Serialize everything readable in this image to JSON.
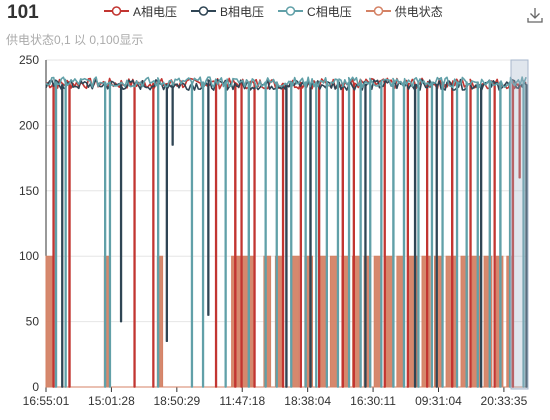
{
  "title": "101",
  "subtitle": "供电状态0,1 以 0,100显示",
  "toolbox": {
    "icon": "download-icon"
  },
  "chart_data": {
    "type": "line",
    "title": "101",
    "subtitle": "供电状态0,1 以 0,100显示",
    "ylim": [
      0,
      250
    ],
    "y_ticks": [
      0,
      50,
      100,
      150,
      200,
      250
    ],
    "x_tick_labels": [
      "16:55:01",
      "15:01:28",
      "18:50:29",
      "11:47:18",
      "18:38:04",
      "16:30:11",
      "09:31:04",
      "20:33:35"
    ],
    "grid": true,
    "legend_position": "top",
    "series": [
      {
        "name": "A相电压",
        "color": "#c23531",
        "baseline": 232,
        "drops": [
          [
            0.015,
            0
          ],
          [
            0.048,
            0
          ],
          [
            0.183,
            0
          ],
          [
            0.222,
            0
          ],
          [
            0.352,
            0
          ],
          [
            0.392,
            0
          ],
          [
            0.405,
            0
          ],
          [
            0.432,
            0
          ],
          [
            0.491,
            0
          ],
          [
            0.528,
            0
          ],
          [
            0.566,
            0
          ],
          [
            0.615,
            0
          ],
          [
            0.638,
            0
          ],
          [
            0.702,
            0
          ],
          [
            0.75,
            0
          ],
          [
            0.79,
            0
          ],
          [
            0.842,
            0
          ],
          [
            0.88,
            0
          ],
          [
            0.93,
            0
          ],
          [
            0.968,
            0
          ],
          [
            0.982,
            160
          ]
        ]
      },
      {
        "name": "B相电压",
        "color": "#2f4554",
        "baseline": 231,
        "drops": [
          [
            0.033,
            0
          ],
          [
            0.155,
            50
          ],
          [
            0.25,
            35
          ],
          [
            0.262,
            185
          ],
          [
            0.336,
            55
          ],
          [
            0.498,
            0
          ],
          [
            0.548,
            0
          ],
          [
            0.662,
            0
          ],
          [
            0.765,
            0
          ],
          [
            0.81,
            0
          ],
          [
            0.902,
            0
          ],
          [
            0.996,
            0
          ]
        ]
      },
      {
        "name": "C相电压",
        "color": "#61a0a8",
        "baseline": 233,
        "drops": [
          [
            0.02,
            0
          ],
          [
            0.04,
            0
          ],
          [
            0.122,
            0
          ],
          [
            0.132,
            0
          ],
          [
            0.232,
            0
          ],
          [
            0.302,
            0
          ],
          [
            0.325,
            0
          ],
          [
            0.372,
            0
          ],
          [
            0.42,
            0
          ],
          [
            0.455,
            0
          ],
          [
            0.478,
            0
          ],
          [
            0.508,
            0
          ],
          [
            0.538,
            0
          ],
          [
            0.56,
            0
          ],
          [
            0.582,
            0
          ],
          [
            0.605,
            0
          ],
          [
            0.628,
            0
          ],
          [
            0.652,
            0
          ],
          [
            0.672,
            0
          ],
          [
            0.695,
            0
          ],
          [
            0.72,
            0
          ],
          [
            0.742,
            0
          ],
          [
            0.772,
            0
          ],
          [
            0.8,
            0
          ],
          [
            0.822,
            0
          ],
          [
            0.852,
            0
          ],
          [
            0.872,
            0
          ],
          [
            0.895,
            0
          ],
          [
            0.92,
            0
          ],
          [
            0.942,
            0
          ],
          [
            0.962,
            0
          ],
          [
            0.99,
            0
          ]
        ]
      },
      {
        "name": "供电状态",
        "color": "#d48265",
        "on_value": 100,
        "on_intervals": [
          [
            0.0,
            0.014
          ],
          [
            0.121,
            0.133
          ],
          [
            0.231,
            0.242
          ],
          [
            0.385,
            0.433
          ],
          [
            0.452,
            0.466
          ],
          [
            0.476,
            0.493
          ],
          [
            0.508,
            0.525
          ],
          [
            0.537,
            0.553
          ],
          [
            0.566,
            0.581
          ],
          [
            0.59,
            0.606
          ],
          [
            0.614,
            0.628
          ],
          [
            0.636,
            0.651
          ],
          [
            0.66,
            0.672
          ],
          [
            0.681,
            0.696
          ],
          [
            0.705,
            0.719
          ],
          [
            0.728,
            0.741
          ],
          [
            0.75,
            0.771
          ],
          [
            0.78,
            0.797
          ],
          [
            0.806,
            0.821
          ],
          [
            0.83,
            0.852
          ],
          [
            0.861,
            0.875
          ],
          [
            0.884,
            0.9
          ],
          [
            0.909,
            0.925
          ],
          [
            0.934,
            0.948
          ],
          [
            0.956,
            0.967
          ]
        ]
      }
    ]
  }
}
